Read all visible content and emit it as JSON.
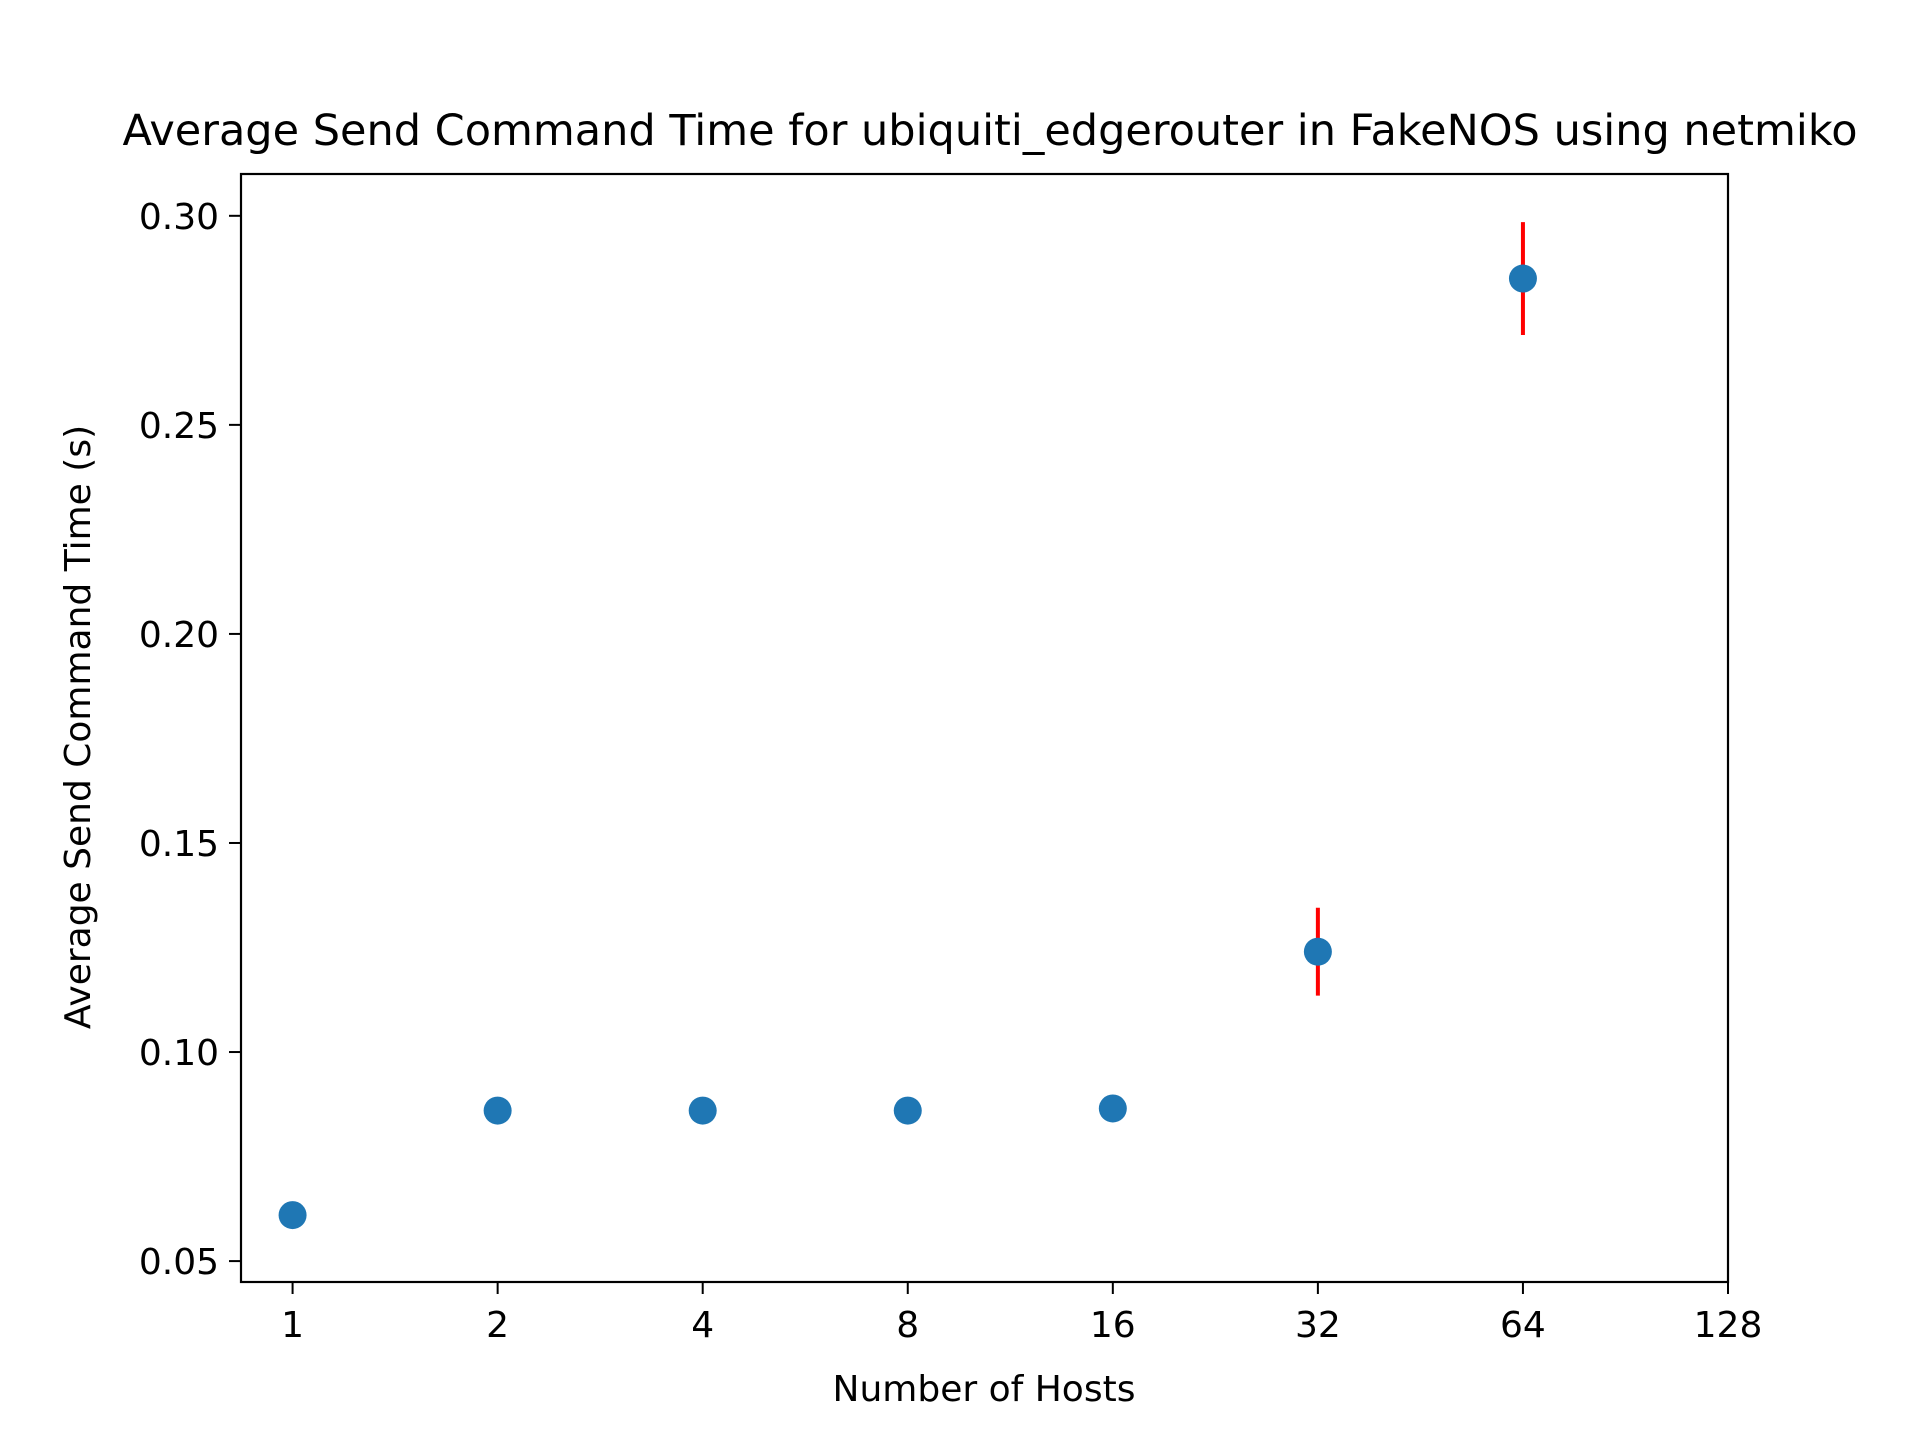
{
  "chart_data": {
    "type": "scatter",
    "title": "Average Send Command Time for ubiquiti_edgerouter in FakeNOS using netmiko",
    "xlabel": "Number of Hosts",
    "ylabel": "Average Send Command Time (s)",
    "x_scale": "log2",
    "xlim": [
      0.84,
      128
    ],
    "ylim": [
      0.045,
      0.31
    ],
    "x_ticks": [
      1,
      2,
      4,
      8,
      16,
      32,
      64,
      128
    ],
    "y_ticks": [
      "0.05",
      "0.10",
      "0.15",
      "0.20",
      "0.25",
      "0.30"
    ],
    "grid": false,
    "series": [
      {
        "x": [
          1,
          2,
          4,
          8,
          16,
          32,
          64
        ],
        "y": [
          0.061,
          0.086,
          0.086,
          0.086,
          0.0865,
          0.124,
          0.285
        ],
        "error": [
          0,
          0,
          0,
          0,
          0,
          0.0105,
          0.0135
        ],
        "color": "#1f77b4",
        "error_color": "#ff0000"
      }
    ]
  }
}
